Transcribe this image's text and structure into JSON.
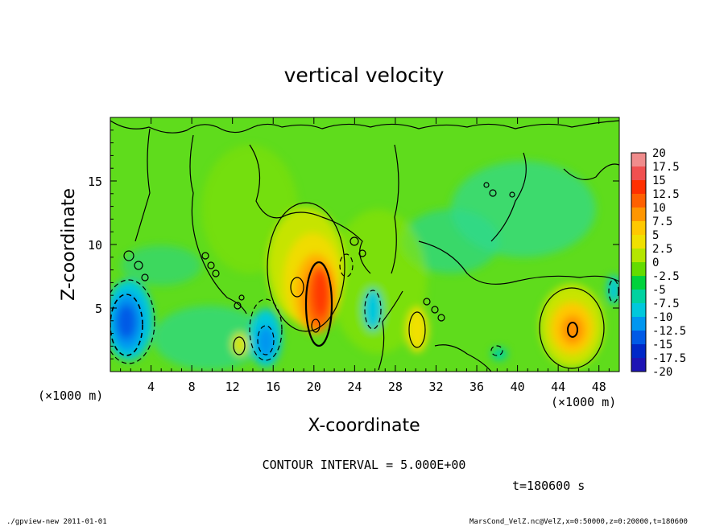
{
  "chart_data": {
    "type": "heatmap",
    "title": "vertical velocity",
    "xlabel": "X-coordinate",
    "ylabel": "Z-coordinate",
    "x_unit": "(×1000 m)",
    "z_unit": "(×1000 m)",
    "xlim": [
      0,
      50
    ],
    "ylim": [
      0,
      20
    ],
    "x_ticks": [
      4,
      8,
      12,
      16,
      20,
      24,
      28,
      32,
      36,
      40,
      44,
      48
    ],
    "y_ticks": [
      5,
      10,
      15
    ],
    "colorbar": {
      "levels": [
        "20",
        "17.5",
        "15",
        "12.5",
        "10",
        "7.5",
        "5",
        "2.5",
        "0",
        "-2.5",
        "-5",
        "-7.5",
        "-10",
        "-12.5",
        "-15",
        "-17.5",
        "-20"
      ],
      "colors": [
        "#f08c8c",
        "#f05050",
        "#ff3000",
        "#ff6000",
        "#ff9600",
        "#ffc800",
        "#f0e000",
        "#b4e600",
        "#64dc00",
        "#00d23c",
        "#00d2a0",
        "#00c8dc",
        "#0096f0",
        "#005ae6",
        "#0028c8",
        "#1e14b4",
        "#6e00aa"
      ]
    },
    "contour_interval": "CONTOUR INTERVAL = 5.000E+00",
    "time_label": "t=180600 s",
    "features": [
      {
        "kind": "updraft",
        "x": 20.6,
        "z": 5.0,
        "peak": 17.5
      },
      {
        "kind": "updraft",
        "x": 45.5,
        "z": 3.3,
        "peak": 12.5
      },
      {
        "kind": "updraft",
        "x": 30.3,
        "z": 3.5,
        "peak": 7.5
      },
      {
        "kind": "downdraft",
        "x": 2.0,
        "z": 4.2,
        "peak": -12.5
      },
      {
        "kind": "downdraft",
        "x": 15.0,
        "z": 3.0,
        "peak": -10
      },
      {
        "kind": "downdraft",
        "x": 25.8,
        "z": 4.8,
        "peak": -7.5
      }
    ]
  },
  "footer": {
    "left": "./gpview-new   2011-01-01",
    "right": "MarsCond_VelZ.nc@VelZ,x=0:50000,z=0:20000,t=180600"
  }
}
